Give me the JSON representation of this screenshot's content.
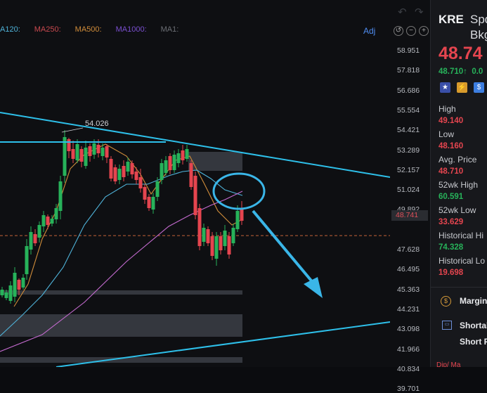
{
  "ma_legend": [
    {
      "label": "A120:",
      "color": "#4fb3d9"
    },
    {
      "label": "MA250:",
      "color": "#c9494f"
    },
    {
      "label": "MA500:",
      "color": "#d18d3a"
    },
    {
      "label": "MA1000:",
      "color": "#7a4fd0"
    },
    {
      "label": "MA1:",
      "color": "#6c6f75"
    }
  ],
  "adj_label": "Adj",
  "price_ticks": [
    "58.951",
    "57.818",
    "56.686",
    "55.554",
    "54.421",
    "53.289",
    "52.157",
    "51.024",
    "49.892",
    "48.741",
    "47.628",
    "46.495",
    "45.363",
    "44.231",
    "43.098",
    "41.966",
    "40.834",
    "39.701"
  ],
  "current_price_label": "48.741",
  "high_annotation": "54.026",
  "colors": {
    "up": "#27b25a",
    "down": "#e5454f",
    "trendline": "#2ec0ea",
    "arrow": "#3ab6e8"
  },
  "quote": {
    "symbol": "KRE",
    "name_line1": "Spd",
    "name_line2": "Bkg",
    "last_price": "48.74",
    "sub_price": "48.710↑",
    "sub_change": "0.0",
    "stats": [
      {
        "label": "High",
        "value": "49.140",
        "tone": "red"
      },
      {
        "label": "Low",
        "value": "48.160",
        "tone": "red"
      },
      {
        "label": "Avg. Price",
        "value": "48.710",
        "tone": "red"
      },
      {
        "label": "52wk High",
        "value": "60.591",
        "tone": "green"
      },
      {
        "label": "52wk Low",
        "value": "33.629",
        "tone": "red"
      },
      {
        "label": "Historical Hi",
        "value": "74.328",
        "tone": "green"
      },
      {
        "label": "Historical Lo",
        "value": "19.698",
        "tone": "red"
      }
    ],
    "margin_label": "Margin",
    "shortable_label": "Shortal",
    "short_label": "Short P",
    "bottom_label": "Dip/ Ma"
  }
}
